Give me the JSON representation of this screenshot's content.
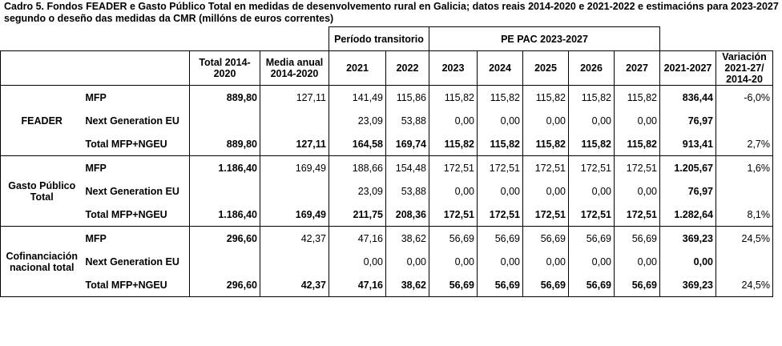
{
  "caption": "Cadro 5. Fondos FEADER e Gasto Público Total en medidas de desenvolvemento rural en Galicia; datos reais 2014-2020 e 2021-2022 e estimacións para 2023-2027 segundo o deseño das medidas da CMR (millóns de euros correntes)",
  "header": {
    "period_transitory": "Período transitorio",
    "pe_pac": "PE PAC 2023-2027",
    "total_2014_line1": "Total 2014-",
    "total_2014_line2": "2020",
    "media_line1": "Media anual",
    "media_line2": "2014-2020",
    "y2021": "2021",
    "y2022": "2022",
    "y2023": "2023",
    "y2024": "2024",
    "y2025": "2025",
    "y2026": "2026",
    "y2027": "2027",
    "range": "2021-2027",
    "var_line1": "Variación",
    "var_line2": "2021-27/",
    "var_line3": "2014-20"
  },
  "groups": [
    {
      "label_line1": "FEADER",
      "label_line2": "",
      "rows": [
        {
          "name": "MFP",
          "total": "889,80",
          "media": "127,11",
          "y2021": "141,49",
          "y2022": "115,86",
          "y2023": "115,82",
          "y2024": "115,82",
          "y2025": "115,82",
          "y2026": "115,82",
          "y2027": "115,82",
          "range": "836,44",
          "var": "-6,0%"
        },
        {
          "name": "Next Generation EU",
          "total": "",
          "media": "",
          "y2021": "23,09",
          "y2022": "53,88",
          "y2023": "0,00",
          "y2024": "0,00",
          "y2025": "0,00",
          "y2026": "0,00",
          "y2027": "0,00",
          "range": "76,97",
          "var": ""
        },
        {
          "name": "Total MFP+NGEU",
          "total": "889,80",
          "media": "127,11",
          "y2021": "164,58",
          "y2022": "169,74",
          "y2023": "115,82",
          "y2024": "115,82",
          "y2025": "115,82",
          "y2026": "115,82",
          "y2027": "115,82",
          "range": "913,41",
          "var": "2,7%"
        }
      ]
    },
    {
      "label_line1": "Gasto Público",
      "label_line2": "Total",
      "rows": [
        {
          "name": "MFP",
          "total": "1.186,40",
          "media": "169,49",
          "y2021": "188,66",
          "y2022": "154,48",
          "y2023": "172,51",
          "y2024": "172,51",
          "y2025": "172,51",
          "y2026": "172,51",
          "y2027": "172,51",
          "range": "1.205,67",
          "var": "1,6%"
        },
        {
          "name": "Next Generation EU",
          "total": "",
          "media": "",
          "y2021": "23,09",
          "y2022": "53,88",
          "y2023": "0,00",
          "y2024": "0,00",
          "y2025": "0,00",
          "y2026": "0,00",
          "y2027": "0,00",
          "range": "76,97",
          "var": ""
        },
        {
          "name": "Total MFP+NGEU",
          "total": "1.186,40",
          "media": "169,49",
          "y2021": "211,75",
          "y2022": "208,36",
          "y2023": "172,51",
          "y2024": "172,51",
          "y2025": "172,51",
          "y2026": "172,51",
          "y2027": "172,51",
          "range": "1.282,64",
          "var": "8,1%"
        }
      ]
    },
    {
      "label_line1": "Cofinanciación",
      "label_line2": "nacional total",
      "rows": [
        {
          "name": "MFP",
          "total": "296,60",
          "media": "42,37",
          "y2021": "47,16",
          "y2022": "38,62",
          "y2023": "56,69",
          "y2024": "56,69",
          "y2025": "56,69",
          "y2026": "56,69",
          "y2027": "56,69",
          "range": "369,23",
          "var": "24,5%"
        },
        {
          "name": "Next Generation EU",
          "total": "",
          "media": "",
          "y2021": "0,00",
          "y2022": "0,00",
          "y2023": "0,00",
          "y2024": "0,00",
          "y2025": "0,00",
          "y2026": "0,00",
          "y2027": "0,00",
          "range": "0,00",
          "var": ""
        },
        {
          "name": "Total MFP+NGEU",
          "total": "296,60",
          "media": "42,37",
          "y2021": "47,16",
          "y2022": "38,62",
          "y2023": "56,69",
          "y2024": "56,69",
          "y2025": "56,69",
          "y2026": "56,69",
          "y2027": "56,69",
          "range": "369,23",
          "var": "24,5%"
        }
      ]
    }
  ]
}
